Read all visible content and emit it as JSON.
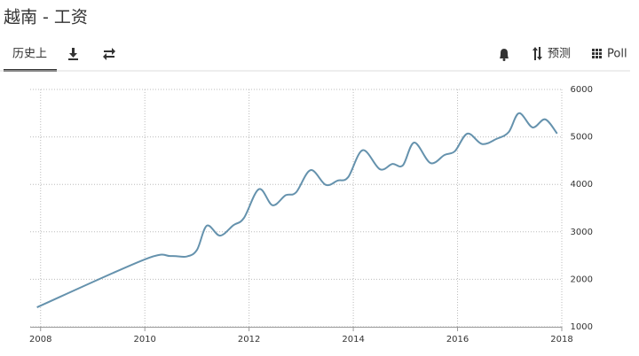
{
  "toolbar": {
    "tab": "历史上",
    "forecast": "预测",
    "poll": "Poll"
  },
  "chart_data": {
    "type": "line",
    "title": "越南 - 工资",
    "x": [
      2007.93,
      2010.0,
      2010.5,
      2010.8,
      2011.0,
      2011.19,
      2011.44,
      2011.7,
      2011.9,
      2012.19,
      2012.45,
      2012.7,
      2012.9,
      2013.18,
      2013.47,
      2013.7,
      2013.9,
      2014.18,
      2014.51,
      2014.75,
      2014.95,
      2015.17,
      2015.48,
      2015.75,
      2015.95,
      2016.19,
      2016.47,
      2016.75,
      2016.98,
      2017.18,
      2017.44,
      2017.68,
      2017.91
    ],
    "values": [
      1410,
      2420,
      2490,
      2480,
      2620,
      3130,
      2920,
      3140,
      3290,
      3900,
      3560,
      3770,
      3830,
      4300,
      3990,
      4080,
      4150,
      4720,
      4320,
      4430,
      4400,
      4880,
      4450,
      4620,
      4700,
      5070,
      4850,
      4960,
      5100,
      5500,
      5200,
      5370,
      5070
    ],
    "color": "#6592ad",
    "xlim": [
      2007.8,
      2018
    ],
    "xticks": [
      2008,
      2010,
      2012,
      2014,
      2016,
      2018
    ],
    "ylim": [
      1000,
      6000
    ],
    "yticks": [
      1000,
      2000,
      3000,
      4000,
      5000,
      6000
    ],
    "grid": true
  }
}
